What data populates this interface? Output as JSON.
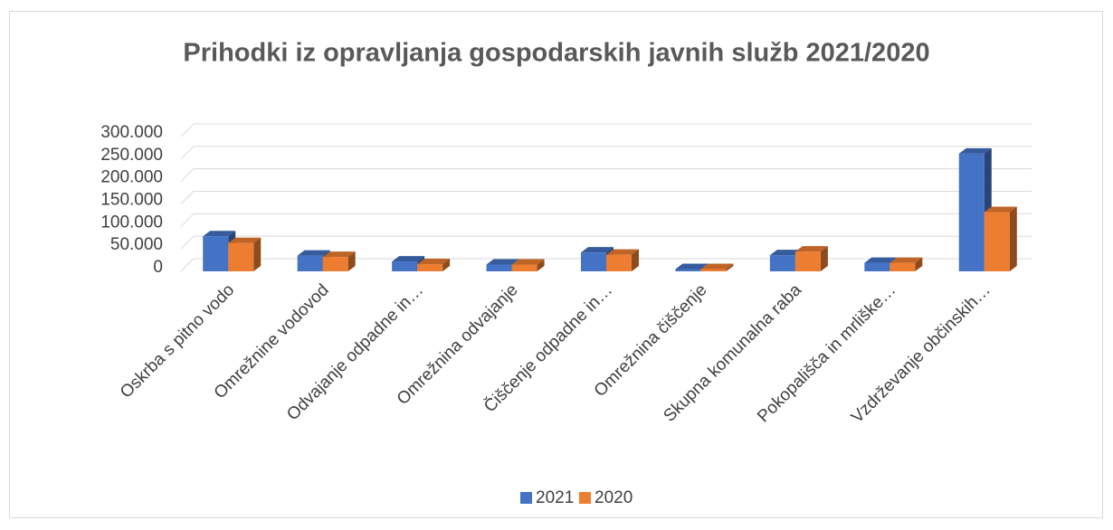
{
  "chart_data": {
    "type": "bar",
    "title": "Prihodki iz opravljanja gospodarskih javnih služb 2021/2020",
    "categories": [
      "Oskrba s pitno vodo",
      "Omrežnine vodovod",
      "Odvajanje odpadne in…",
      "Omrežnina odvajanje",
      "Čiščenje odpadne in…",
      "Omrežnina čiščenje",
      "Skupna komunalna raba",
      "Pokopališča in mrliške…",
      "Vzdrževanje občinskih…"
    ],
    "series": [
      {
        "name": "2021",
        "color": "#4472c4",
        "values": [
          78000,
          35000,
          22000,
          15000,
          42000,
          5000,
          36000,
          19000,
          262000
        ]
      },
      {
        "name": "2020",
        "color": "#ed7d31",
        "values": [
          63000,
          32000,
          16000,
          15000,
          37000,
          5000,
          44000,
          19000,
          132000
        ]
      }
    ],
    "ylim": [
      0,
      300000
    ],
    "yticks": [
      0,
      {
        "value": 50000,
        "label": "50.000"
      },
      {
        "value": 100000,
        "label": "100.000"
      },
      {
        "value": 150000,
        "label": "150.000"
      },
      {
        "value": 200000,
        "label": "200.000"
      },
      {
        "value": 250000,
        "label": "250.000"
      },
      {
        "value": 300000,
        "label": "300.000"
      }
    ],
    "grid": true,
    "legend": "bottom"
  }
}
